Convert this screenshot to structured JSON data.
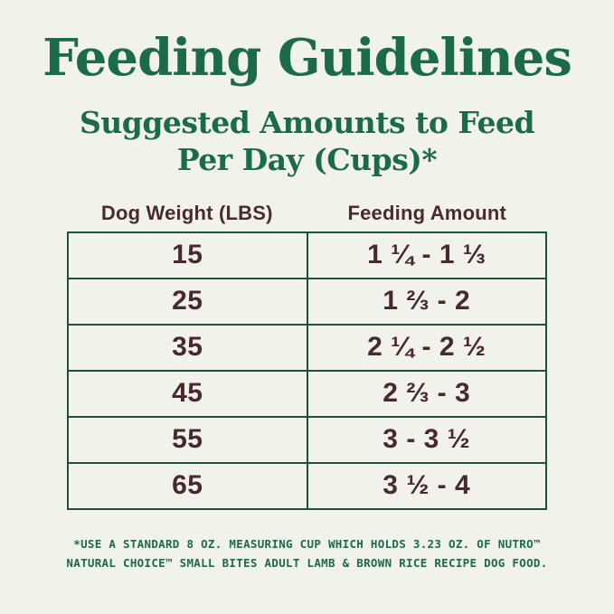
{
  "chart_data": {
    "type": "table",
    "title": "Feeding Guidelines",
    "subtitle_lines": [
      "Suggested Amounts to Feed",
      "Per Day (Cups)*"
    ],
    "columns": [
      "Dog Weight (LBS)",
      "Feeding Amount"
    ],
    "rows": [
      {
        "weight": "15",
        "amount": "1 ¼ - 1 ⅓"
      },
      {
        "weight": "25",
        "amount": "1 ⅔ - 2"
      },
      {
        "weight": "35",
        "amount": "2 ¼ - 2 ½"
      },
      {
        "weight": "45",
        "amount": "2 ⅔ - 3"
      },
      {
        "weight": "55",
        "amount": "3 - 3 ½"
      },
      {
        "weight": "65",
        "amount": "3 ½ - 4"
      }
    ],
    "footnote_lines": [
      "*USE A STANDARD 8 OZ. MEASURING CUP WHICH HOLDS 3.23 OZ. OF NUTRO™",
      "NATURAL CHOICE™ SMALL BITES ADULT LAMB & BROWN RICE RECIPE DOG FOOD."
    ],
    "layout": {
      "grid": false,
      "legend": "none"
    }
  },
  "colors": {
    "background": "#f1f2e9",
    "heading_green": "#1b6a48",
    "table_text_maroon": "#47292e",
    "table_border_green": "#1e5138"
  }
}
